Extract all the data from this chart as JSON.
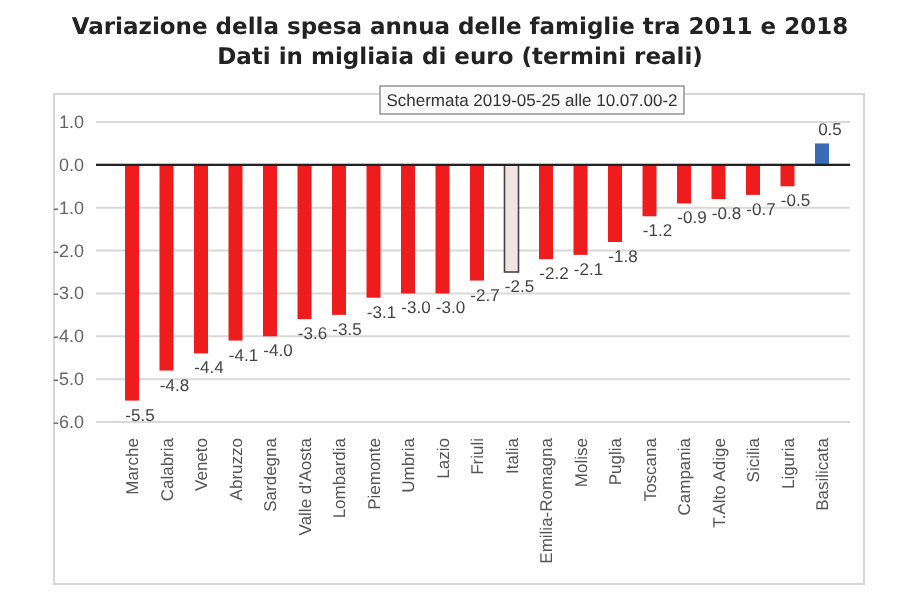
{
  "chart_data": {
    "type": "bar",
    "title": "Variazione della spesa annua delle famiglie tra 2011 e 2018",
    "subtitle": "Dati in migliaia di euro (termini reali)",
    "categories": [
      "Marche",
      "Calabria",
      "Veneto",
      "Abruzzo",
      "Sardegna",
      "Valle d'Aosta",
      "Lombardia",
      "Piemonte",
      "Umbria",
      "Lazio",
      "Friuli",
      "Italia",
      "Emilia-Romagna",
      "Molise",
      "Puglia",
      "Toscana",
      "Campania",
      "T.Alto Adige",
      "Sicilia",
      "Liguria",
      "Basilicata"
    ],
    "values": [
      -5.5,
      -4.8,
      -4.4,
      -4.1,
      -4.0,
      -3.6,
      -3.5,
      -3.1,
      -3.0,
      -3.0,
      -2.7,
      -2.5,
      -2.2,
      -2.1,
      -1.8,
      -1.2,
      -0.9,
      -0.8,
      -0.7,
      -0.5,
      0.5
    ],
    "value_labels": [
      "-5.5",
      "-4.8",
      "-4.4",
      "-4.1",
      "-4.0",
      "-3.6",
      "-3.5",
      "-3.1",
      "-3.0",
      "-3.0",
      "-2.7",
      "-2.5",
      "-2.2",
      "-2.1",
      "-1.8",
      "-1.2",
      "-0.9",
      "-0.8",
      "-0.7",
      "-0.5",
      "0.5"
    ],
    "colors": [
      "#ee1c1c",
      "#ee1c1c",
      "#ee1c1c",
      "#ee1c1c",
      "#ee1c1c",
      "#ee1c1c",
      "#ee1c1c",
      "#ee1c1c",
      "#ee1c1c",
      "#ee1c1c",
      "#ee1c1c",
      "#f3e4e4",
      "#ee1c1c",
      "#ee1c1c",
      "#ee1c1c",
      "#ee1c1c",
      "#ee1c1c",
      "#ee1c1c",
      "#ee1c1c",
      "#ee1c1c",
      "#3a6bb5"
    ],
    "ylim": [
      -6,
      1
    ],
    "yticks": [
      {
        "value": 1,
        "label": "1.0"
      },
      {
        "value": 0,
        "label": "0.0"
      },
      {
        "value": -1,
        "label": "-1.0"
      },
      {
        "value": -2,
        "label": "-2.0"
      },
      {
        "value": -3,
        "label": "-3.0"
      },
      {
        "value": -4,
        "label": "-4.0"
      },
      {
        "value": -5,
        "label": "-5.0"
      },
      {
        "value": -6,
        "label": "-6.0"
      }
    ],
    "grid": "y",
    "annotations": [
      "Schermata 2019-05-25 alle 10.07.00-2"
    ]
  }
}
